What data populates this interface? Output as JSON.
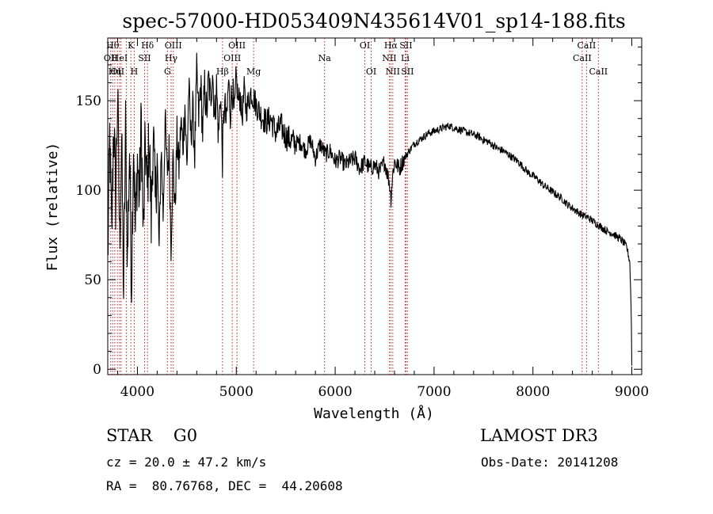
{
  "chart_data": {
    "type": "line",
    "title": "spec-57000-HD053409N435614V01_sp14-188.fits",
    "xlabel": "Wavelength (Å)",
    "ylabel": "Flux (relative)",
    "xlim": [
      3700,
      9100
    ],
    "ylim": [
      -3,
      185
    ],
    "xticks": [
      4000,
      5000,
      6000,
      7000,
      8000,
      9000
    ],
    "yticks": [
      0,
      50,
      100,
      150
    ],
    "series": [
      {
        "name": "spectrum",
        "x": [
          3700,
          3720,
          3740,
          3760,
          3780,
          3800,
          3820,
          3840,
          3860,
          3880,
          3900,
          3920,
          3940,
          3960,
          3980,
          4000,
          4020,
          4040,
          4060,
          4080,
          4100,
          4120,
          4140,
          4160,
          4180,
          4200,
          4220,
          4240,
          4260,
          4280,
          4300,
          4320,
          4340,
          4360,
          4380,
          4400,
          4420,
          4440,
          4460,
          4480,
          4500,
          4520,
          4540,
          4560,
          4580,
          4600,
          4620,
          4640,
          4660,
          4680,
          4700,
          4720,
          4740,
          4760,
          4780,
          4800,
          4820,
          4840,
          4860,
          4880,
          4900,
          4920,
          4940,
          4960,
          4980,
          5000,
          5020,
          5040,
          5060,
          5080,
          5100,
          5150,
          5200,
          5250,
          5300,
          5350,
          5400,
          5450,
          5500,
          5550,
          5600,
          5650,
          5700,
          5750,
          5800,
          5850,
          5900,
          5950,
          6000,
          6050,
          6100,
          6150,
          6200,
          6250,
          6300,
          6350,
          6400,
          6450,
          6500,
          6550,
          6564,
          6580,
          6600,
          6650,
          6700,
          6750,
          6800,
          6850,
          6900,
          6950,
          7000,
          7050,
          7100,
          7150,
          7200,
          7250,
          7300,
          7350,
          7400,
          7450,
          7500,
          7550,
          7600,
          7650,
          7700,
          7750,
          7800,
          7850,
          7900,
          7950,
          8000,
          8050,
          8100,
          8150,
          8200,
          8250,
          8300,
          8350,
          8400,
          8450,
          8500,
          8550,
          8600,
          8650,
          8700,
          8750,
          8800,
          8850,
          8900,
          8950,
          8980,
          8995,
          9000
        ],
        "values": [
          58,
          130,
          72,
          140,
          95,
          155,
          70,
          128,
          42,
          135,
          60,
          125,
          48,
          130,
          75,
          118,
          95,
          140,
          70,
          128,
          98,
          132,
          82,
          135,
          92,
          120,
          65,
          125,
          86,
          140,
          110,
          122,
          70,
          118,
          88,
          130,
          112,
          138,
          125,
          148,
          112,
          158,
          130,
          145,
          120,
          165,
          140,
          160,
          132,
          158,
          142,
          162,
          150,
          168,
          140,
          158,
          130,
          155,
          118,
          150,
          135,
          160,
          145,
          158,
          140,
          162,
          150,
          152,
          140,
          156,
          145,
          155,
          148,
          142,
          138,
          140,
          132,
          136,
          130,
          128,
          126,
          127,
          122,
          128,
          118,
          126,
          120,
          122,
          116,
          118,
          114,
          116,
          118,
          112,
          116,
          112,
          114,
          110,
          116,
          104,
          95,
          108,
          116,
          112,
          118,
          122,
          126,
          128,
          130,
          132,
          133,
          134,
          135,
          136,
          135,
          134,
          133,
          132,
          131,
          130,
          128,
          127,
          125,
          123,
          122,
          120,
          118,
          116,
          113,
          110,
          108,
          106,
          103,
          101,
          99,
          97,
          95,
          92,
          90,
          88,
          86,
          85,
          83,
          81,
          79,
          77,
          76,
          74,
          72,
          68,
          60,
          30,
          2
        ]
      }
    ],
    "lines": [
      {
        "wl": 3730,
        "label": "OII",
        "row": 2
      },
      {
        "wl": 3750,
        "label": "Hθ",
        "row": 1
      },
      {
        "wl": 3771,
        "label": "Hη",
        "row": 3
      },
      {
        "wl": 3798,
        "label": "OII",
        "row": 3
      },
      {
        "wl": 3820,
        "label": "HeI",
        "row": 2
      },
      {
        "wl": 3835,
        "label": "",
        "row": 1
      },
      {
        "wl": 3889,
        "label": "",
        "row": 1
      },
      {
        "wl": 3934,
        "label": "K",
        "row": 1
      },
      {
        "wl": 3968,
        "label": "H",
        "row": 3
      },
      {
        "wl": 4072,
        "label": "SII",
        "row": 2
      },
      {
        "wl": 4102,
        "label": "Hδ",
        "row": 1
      },
      {
        "wl": 4304,
        "label": "G",
        "row": 3
      },
      {
        "wl": 4341,
        "label": "Hγ",
        "row": 2
      },
      {
        "wl": 4363,
        "label": "OIII",
        "row": 1
      },
      {
        "wl": 4861,
        "label": "Hβ",
        "row": 3
      },
      {
        "wl": 4959,
        "label": "OIII",
        "row": 2
      },
      {
        "wl": 5007,
        "label": "OIII",
        "row": 1
      },
      {
        "wl": 5175,
        "label": "Mg",
        "row": 3
      },
      {
        "wl": 5893,
        "label": "Na",
        "row": 2
      },
      {
        "wl": 6300,
        "label": "OI",
        "row": 1
      },
      {
        "wl": 6364,
        "label": "OI",
        "row": 3
      },
      {
        "wl": 6548,
        "label": "NII",
        "row": 2
      },
      {
        "wl": 6563,
        "label": "Hα",
        "row": 1
      },
      {
        "wl": 6583,
        "label": "NII",
        "row": 3
      },
      {
        "wl": 6708,
        "label": "Li",
        "row": 2
      },
      {
        "wl": 6716,
        "label": "SII",
        "row": 1
      },
      {
        "wl": 6731,
        "label": "SII",
        "row": 3
      },
      {
        "wl": 8498,
        "label": "CaII",
        "row": 2
      },
      {
        "wl": 8542,
        "label": "CaII",
        "row": 1
      },
      {
        "wl": 8662,
        "label": "CaII",
        "row": 3
      }
    ]
  },
  "info": {
    "class_text": "STAR    G0",
    "survey": "LAMOST DR3",
    "cz": "cz = 20.0 ± 47.2 km/s",
    "obs_date": "Obs-Date: 20141208",
    "radec": "RA =  80.76768, DEC =  44.20608"
  }
}
